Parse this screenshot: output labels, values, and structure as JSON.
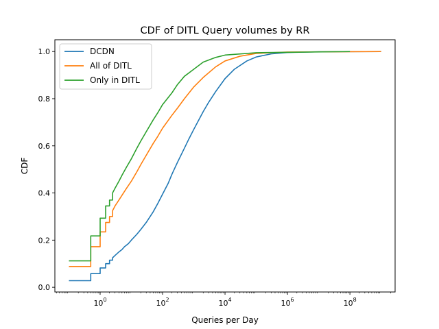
{
  "chart_data": {
    "type": "line",
    "title": "CDF of DITL Query volumes by RR",
    "xlabel": "Queries per Day",
    "ylabel": "CDF",
    "xscale": "log",
    "xlim": [
      0.0355,
      2800000000.0
    ],
    "ylim": [
      -0.02,
      1.05
    ],
    "xticks": [
      {
        "value": 1,
        "base": "10",
        "exp": "0"
      },
      {
        "value": 100,
        "base": "10",
        "exp": "2"
      },
      {
        "value": 10000,
        "base": "10",
        "exp": "4"
      },
      {
        "value": 1000000,
        "base": "10",
        "exp": "6"
      },
      {
        "value": 100000000,
        "base": "10",
        "exp": "8"
      }
    ],
    "yticks": [
      "0.0",
      "0.2",
      "0.4",
      "0.6",
      "0.8",
      "1.0"
    ],
    "grid": false,
    "legend_position": "upper-left",
    "series": [
      {
        "name": "DCDN",
        "color": "#1f77b4",
        "points": [
          [
            0.1,
            0.028
          ],
          [
            0.5,
            0.028
          ],
          [
            0.5,
            0.058
          ],
          [
            1,
            0.058
          ],
          [
            1,
            0.082
          ],
          [
            1.5,
            0.082
          ],
          [
            1.5,
            0.1
          ],
          [
            2,
            0.1
          ],
          [
            2,
            0.115
          ],
          [
            2.5,
            0.115
          ],
          [
            2.5,
            0.125
          ],
          [
            3,
            0.135
          ],
          [
            4,
            0.15
          ],
          [
            5,
            0.16
          ],
          [
            6,
            0.172
          ],
          [
            8,
            0.185
          ],
          [
            10,
            0.2
          ],
          [
            15,
            0.225
          ],
          [
            20,
            0.245
          ],
          [
            30,
            0.275
          ],
          [
            50,
            0.32
          ],
          [
            70,
            0.355
          ],
          [
            100,
            0.395
          ],
          [
            150,
            0.44
          ],
          [
            200,
            0.48
          ],
          [
            300,
            0.53
          ],
          [
            500,
            0.59
          ],
          [
            700,
            0.63
          ],
          [
            1000,
            0.67
          ],
          [
            2000,
            0.745
          ],
          [
            3000,
            0.785
          ],
          [
            5000,
            0.83
          ],
          [
            10000,
            0.885
          ],
          [
            20000,
            0.925
          ],
          [
            50000,
            0.96
          ],
          [
            100000,
            0.977
          ],
          [
            300000,
            0.99
          ],
          [
            1000000,
            0.996
          ],
          [
            10000000,
            0.999
          ],
          [
            1000000000,
            1.0
          ]
        ]
      },
      {
        "name": "All of DITL",
        "color": "#ff7f0e",
        "points": [
          [
            0.1,
            0.088
          ],
          [
            0.5,
            0.088
          ],
          [
            0.5,
            0.172
          ],
          [
            1,
            0.172
          ],
          [
            1,
            0.235
          ],
          [
            1.5,
            0.235
          ],
          [
            1.5,
            0.275
          ],
          [
            2,
            0.275
          ],
          [
            2,
            0.3
          ],
          [
            2.5,
            0.3
          ],
          [
            2.5,
            0.325
          ],
          [
            3,
            0.345
          ],
          [
            4,
            0.37
          ],
          [
            5,
            0.39
          ],
          [
            7,
            0.42
          ],
          [
            10,
            0.45
          ],
          [
            15,
            0.49
          ],
          [
            20,
            0.52
          ],
          [
            30,
            0.56
          ],
          [
            50,
            0.61
          ],
          [
            70,
            0.64
          ],
          [
            100,
            0.675
          ],
          [
            200,
            0.73
          ],
          [
            300,
            0.76
          ],
          [
            500,
            0.8
          ],
          [
            1000,
            0.85
          ],
          [
            2000,
            0.89
          ],
          [
            5000,
            0.935
          ],
          [
            10000,
            0.96
          ],
          [
            30000,
            0.98
          ],
          [
            100000,
            0.992
          ],
          [
            1000000,
            0.998
          ],
          [
            1000000000,
            1.0
          ]
        ]
      },
      {
        "name": "Only in DITL",
        "color": "#2ca02c",
        "points": [
          [
            0.1,
            0.112
          ],
          [
            0.5,
            0.112
          ],
          [
            0.5,
            0.218
          ],
          [
            1,
            0.218
          ],
          [
            1,
            0.293
          ],
          [
            1.5,
            0.293
          ],
          [
            1.5,
            0.345
          ],
          [
            2,
            0.345
          ],
          [
            2,
            0.37
          ],
          [
            2.5,
            0.37
          ],
          [
            2.5,
            0.4
          ],
          [
            3,
            0.42
          ],
          [
            4,
            0.45
          ],
          [
            5,
            0.475
          ],
          [
            7,
            0.51
          ],
          [
            10,
            0.545
          ],
          [
            15,
            0.59
          ],
          [
            20,
            0.62
          ],
          [
            30,
            0.66
          ],
          [
            50,
            0.71
          ],
          [
            70,
            0.74
          ],
          [
            100,
            0.775
          ],
          [
            200,
            0.825
          ],
          [
            300,
            0.86
          ],
          [
            500,
            0.895
          ],
          [
            1000,
            0.925
          ],
          [
            2000,
            0.955
          ],
          [
            5000,
            0.975
          ],
          [
            10000,
            0.985
          ],
          [
            100000,
            0.995
          ],
          [
            100000000,
            1.0
          ]
        ]
      }
    ]
  }
}
